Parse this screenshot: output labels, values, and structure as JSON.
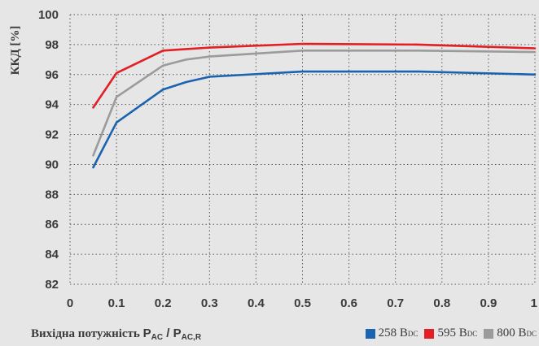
{
  "colors": {
    "background": "#e6e6e6",
    "grid": "#555555",
    "axis_text": "#3a3a3a"
  },
  "chart_data": {
    "type": "line",
    "ylabel": "ККД [%]",
    "xlabel": {
      "prefix": "Вихідна потужність ",
      "p1": "P",
      "p1_sub": "AC",
      "sep": " / ",
      "p2": "P",
      "p2_sub": "AC,R"
    },
    "xlim": [
      0,
      1
    ],
    "ylim": [
      82,
      100
    ],
    "xticks": [
      0,
      0.1,
      0.2,
      0.3,
      0.4,
      0.5,
      0.6,
      0.7,
      0.8,
      0.9,
      1
    ],
    "xtick_labels": [
      "0",
      "0.1",
      "0.2",
      "0.3",
      "0.4",
      "0.5",
      "0.6",
      "0.7",
      "0.8",
      "0.9",
      "1"
    ],
    "yticks": [
      82,
      84,
      86,
      88,
      90,
      92,
      94,
      96,
      98,
      100
    ],
    "ytick_labels": [
      "82",
      "84",
      "86",
      "88",
      "90",
      "92",
      "94",
      "96",
      "98",
      "100"
    ],
    "grid": true,
    "legend_position": "bottom-right",
    "x": [
      0.05,
      0.1,
      0.2,
      0.25,
      0.3,
      0.5,
      0.75,
      1.0
    ],
    "series": [
      {
        "name": "258 B",
        "unit_sub": "DC",
        "color": "#1a63b0",
        "values": [
          89.8,
          92.8,
          95.0,
          95.5,
          95.85,
          96.2,
          96.2,
          96.0
        ]
      },
      {
        "name": "595 B",
        "unit_sub": "DC",
        "color": "#e31e24",
        "values": [
          93.8,
          96.1,
          97.6,
          97.7,
          97.8,
          98.05,
          98.0,
          97.75
        ]
      },
      {
        "name": "800 B",
        "unit_sub": "DC",
        "color": "#9b9b9b",
        "values": [
          90.6,
          94.5,
          96.6,
          97.0,
          97.2,
          97.6,
          97.6,
          97.5
        ]
      }
    ]
  }
}
